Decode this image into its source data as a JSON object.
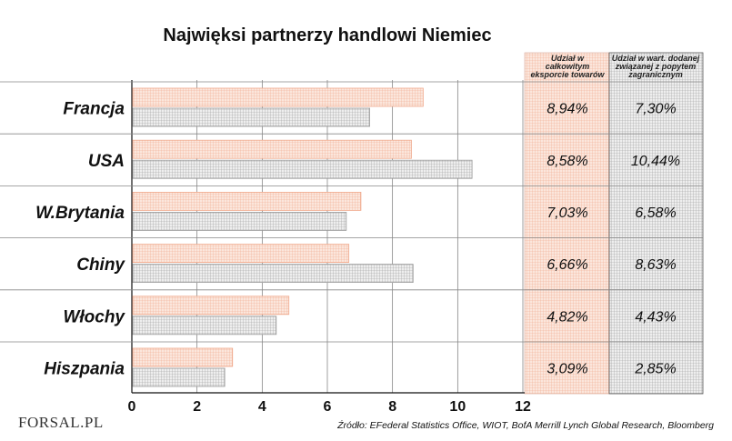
{
  "chart_data": {
    "type": "bar",
    "orientation": "horizontal",
    "title": "Najwięksi partnerzy handlowi Niemiec",
    "categories": [
      "Francja",
      "USA",
      "W.Brytania",
      "Chiny",
      "Włochy",
      "Hiszpania"
    ],
    "series": [
      {
        "values": [
          8.94,
          8.58,
          7.03,
          6.66,
          4.82,
          3.09
        ],
        "color": "#f0a98c"
      },
      {
        "values": [
          7.3,
          10.44,
          6.58,
          8.63,
          4.43,
          2.85
        ],
        "color": "#9a9a9a"
      }
    ],
    "x_ticks": [
      "0",
      "2",
      "4",
      "6",
      "8",
      "10",
      "12"
    ],
    "xlim": [
      0,
      12
    ],
    "grid": true,
    "table": {
      "headers": [
        [
          "Udział w",
          "całkowitym",
          "eksporcie towarów"
        ],
        [
          "Udział w wart. dodanej",
          "związanej z popytem",
          "zagranicznym"
        ]
      ],
      "col1": [
        "8,94%",
        "8,58%",
        "7,03%",
        "6,66%",
        "4,82%",
        "3,09%"
      ],
      "col2": [
        "7,30%",
        "10,44%",
        "6,58%",
        "8,63%",
        "4,43%",
        "2,85%"
      ]
    },
    "source": "Źródło: EFederal Statistics Office, WIOT, BofA Merrill Lynch Global Research, Bloomberg",
    "logo": "FORSAL.PL"
  }
}
